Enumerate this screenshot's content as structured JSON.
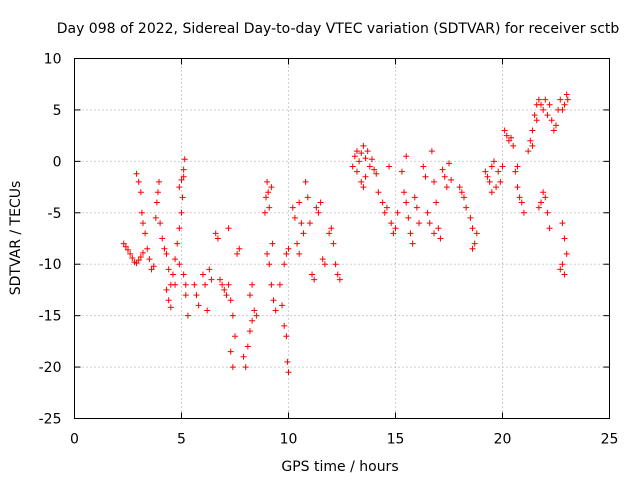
{
  "chart_data": {
    "type": "scatter",
    "title": "Day 098 of 2022, Sidereal Day-to-day VTEC variation (SDTVAR) for receiver sctb",
    "xlabel": "GPS time / hours",
    "ylabel": "SDTVAR / TECUs",
    "xlim": [
      0,
      25
    ],
    "ylim": [
      -25,
      10
    ],
    "xticks": [
      0,
      5,
      10,
      15,
      20,
      25
    ],
    "yticks": [
      -25,
      -20,
      -15,
      -10,
      -5,
      0,
      5,
      10
    ],
    "xtick_labels": [
      "0",
      "5",
      "10",
      "15",
      "20",
      "25"
    ],
    "ytick_labels": [
      "-25",
      "-20",
      "-15",
      "-10",
      "-5",
      "0",
      "5",
      "10"
    ],
    "grid": true,
    "marker": "+",
    "color": "#ff0000",
    "series": [
      {
        "name": "sctb",
        "points": [
          [
            2.3,
            -8.0
          ],
          [
            2.4,
            -8.3
          ],
          [
            2.5,
            -8.6
          ],
          [
            2.6,
            -9.0
          ],
          [
            2.7,
            -9.4
          ],
          [
            2.8,
            -9.8
          ],
          [
            2.9,
            -9.9
          ],
          [
            3.0,
            -9.6
          ],
          [
            3.1,
            -9.3
          ],
          [
            3.2,
            -8.9
          ],
          [
            2.9,
            -1.2
          ],
          [
            3.0,
            -2.0
          ],
          [
            3.1,
            -3.0
          ],
          [
            3.15,
            -5.0
          ],
          [
            3.2,
            -6.0
          ],
          [
            3.3,
            -7.0
          ],
          [
            3.4,
            -8.5
          ],
          [
            3.5,
            -9.5
          ],
          [
            3.6,
            -10.5
          ],
          [
            3.7,
            -10.2
          ],
          [
            3.8,
            -5.5
          ],
          [
            3.85,
            -4.0
          ],
          [
            3.9,
            -3.0
          ],
          [
            3.95,
            -2.0
          ],
          [
            4.0,
            -6.0
          ],
          [
            4.1,
            -7.5
          ],
          [
            4.2,
            -8.5
          ],
          [
            4.3,
            -9.0
          ],
          [
            4.4,
            -10.5
          ],
          [
            4.5,
            -12.0
          ],
          [
            4.3,
            -12.5
          ],
          [
            4.4,
            -13.5
          ],
          [
            4.5,
            -14.2
          ],
          [
            4.6,
            -11.0
          ],
          [
            4.7,
            -9.5
          ],
          [
            4.8,
            -8.0
          ],
          [
            4.9,
            -6.5
          ],
          [
            5.0,
            -5.0
          ],
          [
            5.05,
            -3.5
          ],
          [
            5.1,
            -1.5
          ],
          [
            4.9,
            -2.5
          ],
          [
            5.0,
            -1.8
          ],
          [
            5.1,
            -0.8
          ],
          [
            5.15,
            0.2
          ],
          [
            5.1,
            -11.0
          ],
          [
            5.2,
            -13.0
          ],
          [
            5.3,
            -15.0
          ],
          [
            5.2,
            -12.0
          ],
          [
            4.9,
            -10.0
          ],
          [
            4.7,
            -12.0
          ],
          [
            5.6,
            -12.0
          ],
          [
            5.7,
            -13.0
          ],
          [
            5.8,
            -14.0
          ],
          [
            6.0,
            -11.0
          ],
          [
            6.1,
            -12.0
          ],
          [
            6.2,
            -14.5
          ],
          [
            6.3,
            -10.5
          ],
          [
            6.4,
            -11.5
          ],
          [
            6.6,
            -7.0
          ],
          [
            6.7,
            -7.5
          ],
          [
            6.8,
            -11.5
          ],
          [
            6.9,
            -12.0
          ],
          [
            7.0,
            -12.5
          ],
          [
            7.1,
            -13.0
          ],
          [
            7.2,
            -12.0
          ],
          [
            7.3,
            -13.5
          ],
          [
            7.4,
            -15.0
          ],
          [
            7.5,
            -17.0
          ],
          [
            7.3,
            -18.5
          ],
          [
            7.4,
            -20.0
          ],
          [
            7.2,
            -6.5
          ],
          [
            7.6,
            -9.0
          ],
          [
            7.7,
            -8.5
          ],
          [
            7.9,
            -19.0
          ],
          [
            8.0,
            -20.0
          ],
          [
            8.1,
            -18.0
          ],
          [
            8.2,
            -16.5
          ],
          [
            8.3,
            -15.5
          ],
          [
            8.4,
            -14.5
          ],
          [
            8.5,
            -15.0
          ],
          [
            8.2,
            -13.0
          ],
          [
            8.3,
            -12.0
          ],
          [
            8.9,
            -5.0
          ],
          [
            8.95,
            -3.5
          ],
          [
            9.0,
            -2.0
          ],
          [
            9.05,
            -3.0
          ],
          [
            9.1,
            -4.5
          ],
          [
            9.2,
            -2.5
          ],
          [
            9.1,
            -10.0
          ],
          [
            9.2,
            -12.0
          ],
          [
            9.3,
            -13.5
          ],
          [
            9.4,
            -14.5
          ],
          [
            9.0,
            -9.0
          ],
          [
            9.25,
            -8.0
          ],
          [
            9.6,
            -12.0
          ],
          [
            9.7,
            -14.0
          ],
          [
            9.8,
            -16.0
          ],
          [
            9.9,
            -17.0
          ],
          [
            9.95,
            -19.5
          ],
          [
            10.0,
            -20.5
          ],
          [
            9.8,
            -10.0
          ],
          [
            9.9,
            -9.0
          ],
          [
            10.0,
            -8.5
          ],
          [
            10.2,
            -4.5
          ],
          [
            10.3,
            -5.5
          ],
          [
            10.4,
            -8.0
          ],
          [
            10.5,
            -9.0
          ],
          [
            10.6,
            -6.0
          ],
          [
            10.7,
            -7.0
          ],
          [
            10.5,
            -4.0
          ],
          [
            10.8,
            -2.0
          ],
          [
            10.9,
            -3.5
          ],
          [
            11.0,
            -6.0
          ],
          [
            11.1,
            -11.0
          ],
          [
            11.2,
            -11.5
          ],
          [
            11.3,
            -4.5
          ],
          [
            11.4,
            -5.0
          ],
          [
            11.5,
            -4.0
          ],
          [
            11.6,
            -9.5
          ],
          [
            11.7,
            -10.0
          ],
          [
            11.9,
            -7.0
          ],
          [
            12.0,
            -6.5
          ],
          [
            12.1,
            -8.0
          ],
          [
            12.2,
            -10.0
          ],
          [
            12.3,
            -11.0
          ],
          [
            12.4,
            -11.5
          ],
          [
            13.0,
            -0.5
          ],
          [
            13.1,
            0.5
          ],
          [
            13.2,
            1.0
          ],
          [
            13.3,
            0.0
          ],
          [
            13.4,
            0.8
          ],
          [
            13.5,
            1.5
          ],
          [
            13.6,
            0.3
          ],
          [
            13.7,
            1.0
          ],
          [
            13.8,
            -0.5
          ],
          [
            13.9,
            0.2
          ],
          [
            13.6,
            -1.5
          ],
          [
            13.4,
            -2.0
          ],
          [
            13.2,
            -1.0
          ],
          [
            13.5,
            -2.5
          ],
          [
            14.0,
            -0.8
          ],
          [
            14.1,
            -1.2
          ],
          [
            14.2,
            -3.0
          ],
          [
            14.4,
            -4.0
          ],
          [
            14.5,
            -5.0
          ],
          [
            14.6,
            -4.5
          ],
          [
            14.8,
            -6.0
          ],
          [
            14.9,
            -7.0
          ],
          [
            15.0,
            -6.5
          ],
          [
            15.1,
            -5.0
          ],
          [
            14.7,
            -0.5
          ],
          [
            15.3,
            -1.0
          ],
          [
            15.4,
            -3.0
          ],
          [
            15.5,
            -4.0
          ],
          [
            15.6,
            -5.5
          ],
          [
            15.7,
            -7.0
          ],
          [
            15.8,
            -8.0
          ],
          [
            15.9,
            -3.5
          ],
          [
            16.0,
            -4.5
          ],
          [
            16.1,
            -6.0
          ],
          [
            15.5,
            0.5
          ],
          [
            16.3,
            -0.5
          ],
          [
            16.4,
            -1.5
          ],
          [
            16.5,
            -5.0
          ],
          [
            16.6,
            -6.0
          ],
          [
            16.7,
            1.0
          ],
          [
            16.8,
            -2.0
          ],
          [
            16.9,
            -4.0
          ],
          [
            17.0,
            -6.5
          ],
          [
            17.1,
            -7.5
          ],
          [
            16.8,
            -7.0
          ],
          [
            17.2,
            -0.8
          ],
          [
            17.3,
            -1.5
          ],
          [
            17.4,
            -2.5
          ],
          [
            17.5,
            -0.2
          ],
          [
            17.6,
            -1.8
          ],
          [
            18.0,
            -2.5
          ],
          [
            18.1,
            -3.0
          ],
          [
            18.2,
            -3.5
          ],
          [
            18.3,
            -4.5
          ],
          [
            18.5,
            -5.5
          ],
          [
            18.6,
            -6.5
          ],
          [
            18.7,
            -8.0
          ],
          [
            18.8,
            -7.0
          ],
          [
            18.6,
            -8.5
          ],
          [
            19.2,
            -1.0
          ],
          [
            19.3,
            -1.5
          ],
          [
            19.4,
            -2.0
          ],
          [
            19.5,
            -0.5
          ],
          [
            19.6,
            0.0
          ],
          [
            19.7,
            -2.5
          ],
          [
            19.8,
            -1.0
          ],
          [
            19.9,
            -2.0
          ],
          [
            20.0,
            -0.5
          ],
          [
            19.5,
            -3.0
          ],
          [
            20.1,
            3.0
          ],
          [
            20.2,
            2.5
          ],
          [
            20.3,
            2.0
          ],
          [
            20.4,
            2.3
          ],
          [
            20.5,
            1.5
          ],
          [
            20.6,
            -1.0
          ],
          [
            20.7,
            -2.5
          ],
          [
            20.8,
            -3.5
          ],
          [
            20.9,
            -4.0
          ],
          [
            21.0,
            -5.0
          ],
          [
            20.7,
            -0.5
          ],
          [
            21.2,
            1.0
          ],
          [
            21.3,
            2.0
          ],
          [
            21.4,
            3.0
          ],
          [
            21.5,
            4.5
          ],
          [
            21.6,
            5.5
          ],
          [
            21.7,
            6.0
          ],
          [
            21.8,
            5.5
          ],
          [
            21.9,
            5.0
          ],
          [
            22.0,
            6.0
          ],
          [
            21.4,
            1.5
          ],
          [
            21.6,
            4.0
          ],
          [
            21.7,
            -4.5
          ],
          [
            21.8,
            -4.0
          ],
          [
            21.9,
            -3.0
          ],
          [
            22.0,
            -3.5
          ],
          [
            22.1,
            -5.0
          ],
          [
            22.2,
            -6.5
          ],
          [
            22.1,
            4.5
          ],
          [
            22.2,
            5.5
          ],
          [
            22.3,
            4.0
          ],
          [
            22.4,
            3.0
          ],
          [
            22.5,
            3.5
          ],
          [
            22.6,
            5.0
          ],
          [
            22.7,
            6.0
          ],
          [
            22.8,
            5.0
          ],
          [
            22.9,
            5.5
          ],
          [
            23.0,
            6.5
          ],
          [
            22.8,
            -6.0
          ],
          [
            22.9,
            -7.5
          ],
          [
            23.0,
            -9.0
          ],
          [
            22.8,
            -10.0
          ],
          [
            22.9,
            -11.0
          ],
          [
            22.7,
            -10.5
          ],
          [
            23.05,
            6.0
          ]
        ]
      }
    ]
  }
}
